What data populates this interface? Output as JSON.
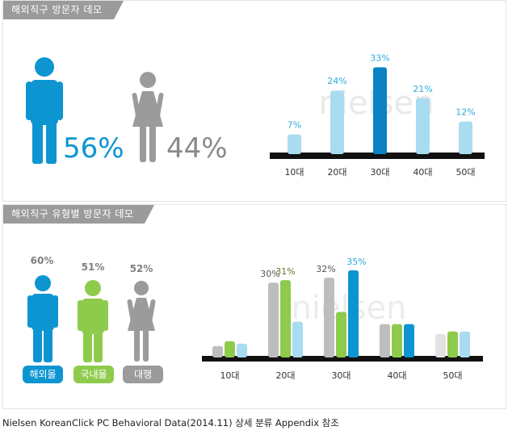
{
  "colors": {
    "blue": "#0d95d2",
    "light_blue": "#a9dcf1",
    "dark_blue": "#0a82c4",
    "green": "#8ecb4c",
    "gray": "#9b9b9b",
    "light_gray": "#bdbdbd",
    "label_blue": "#2eaadf",
    "label_green": "#5c7a1f",
    "label_gray": "#7f7f7f"
  },
  "top_panel": {
    "title": "해외직구 방문자 데모",
    "male_pct": "56%",
    "female_pct": "44%",
    "male_icon": "male-person-icon",
    "female_icon": "female-person-icon"
  },
  "bottom_panel": {
    "title": "해외직구 유형별 방문자 데모",
    "groups": [
      {
        "label": "해외몰",
        "pct": "60%",
        "icon": "male-person-icon",
        "color": "#0d95d2"
      },
      {
        "label": "국내몰",
        "pct": "51%",
        "icon": "male-person-icon",
        "color": "#8ecb4c"
      },
      {
        "label": "대행",
        "pct": "52%",
        "icon": "female-person-icon",
        "color": "#9b9b9b"
      }
    ]
  },
  "watermark": "nielsen",
  "footer": "Nielsen KoreanClick PC Behavioral Data(2014.11) 상세 분류 Appendix 참조",
  "chart_data": [
    {
      "type": "bar",
      "categories": [
        "10대",
        "20대",
        "30대",
        "40대",
        "50대"
      ],
      "values": [
        7,
        24,
        33,
        21,
        12
      ],
      "value_labels": [
        "7%",
        "24%",
        "33%",
        "21%",
        "12%"
      ],
      "ylim": [
        0,
        35
      ],
      "highlight_index": 2
    },
    {
      "type": "bar",
      "categories": [
        "10대",
        "20대",
        "30대",
        "40대",
        "50대"
      ],
      "series": [
        {
          "name": "대행",
          "values": [
            4,
            30,
            32,
            13,
            9
          ]
        },
        {
          "name": "국내몰",
          "values": [
            6,
            31,
            18,
            13,
            10
          ]
        },
        {
          "name": "해외몰",
          "values": [
            5,
            14,
            35,
            13,
            10
          ]
        }
      ],
      "value_labels": [
        {
          "category": "20대",
          "series": "대행",
          "text": "30%"
        },
        {
          "category": "20대",
          "series": "국내몰",
          "text": "31%"
        },
        {
          "category": "30대",
          "series": "대행",
          "text": "32%"
        },
        {
          "category": "30대",
          "series": "해외몰",
          "text": "35%"
        }
      ],
      "ylim": [
        0,
        37
      ]
    }
  ]
}
